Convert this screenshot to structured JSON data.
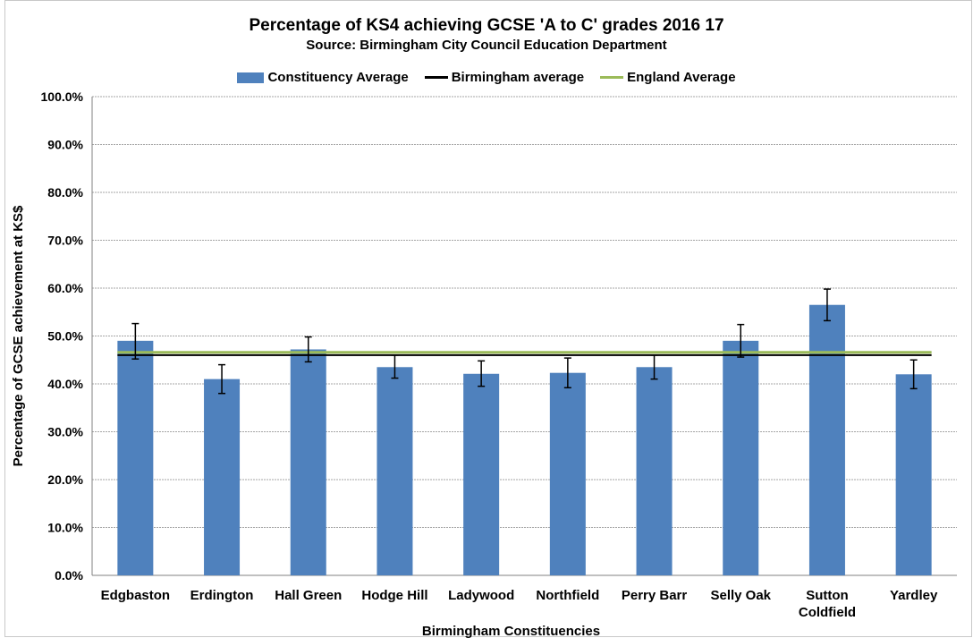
{
  "chart_data": {
    "type": "bar",
    "title": "Percentage of KS4 achieving GCSE 'A to C' grades 2016 17",
    "subtitle": "Source: Birmingham City Council Education Department",
    "xlabel": "Birmingham Constituencies",
    "ylabel": "Percentage of GCSE achievement at KS$",
    "ylim": [
      0,
      100
    ],
    "yticks": [
      "0.0%",
      "10.0%",
      "20.0%",
      "30.0%",
      "40.0%",
      "50.0%",
      "60.0%",
      "70.0%",
      "80.0%",
      "90.0%",
      "100.0%"
    ],
    "categories": [
      "Edgbaston",
      "Erdington",
      "Hall Green",
      "Hodge Hill",
      "Ladywood",
      "Northfield",
      "Perry Barr",
      "Selly Oak",
      "Sutton Coldfield",
      "Yardley"
    ],
    "series": [
      {
        "name": "Constituency Average",
        "values": [
          49.0,
          41.0,
          47.2,
          43.5,
          42.1,
          42.3,
          43.5,
          49.0,
          56.5,
          42.0
        ],
        "error_low": [
          45.2,
          38.0,
          44.6,
          41.2,
          39.5,
          39.2,
          41.0,
          45.6,
          53.2,
          39.0
        ],
        "error_high": [
          52.6,
          44.0,
          49.8,
          46.0,
          44.8,
          45.4,
          46.0,
          52.4,
          59.8,
          45.0
        ],
        "color": "#4f81bd"
      },
      {
        "name": "Birmingham average",
        "value": 46.0,
        "color": "#000000"
      },
      {
        "name": "England Average",
        "value": 46.6,
        "color": "#9bbb59"
      }
    ],
    "grid": true,
    "legend_position": "top"
  }
}
